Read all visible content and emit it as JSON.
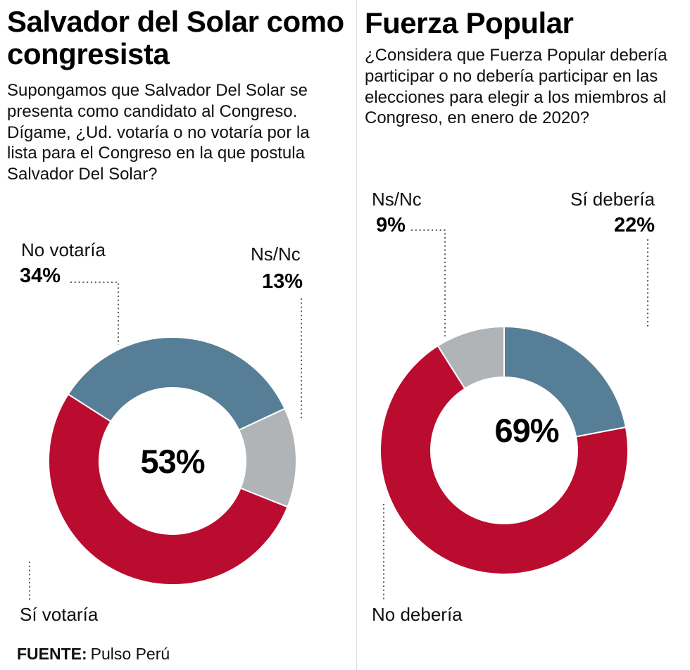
{
  "colors": {
    "crimson": "#ba0c2f",
    "blue": "#567f97",
    "gray": "#b1b4b6"
  },
  "source": {
    "label": "FUENTE:",
    "value": "Pulso Perú"
  },
  "chart_data": [
    {
      "type": "donut",
      "title": "Salvador del Solar como congresista",
      "question": "Supongamos que Salvador Del Solar se presenta como candidato al Congreso. Dígame, ¿Ud. votaría o no votaría por la lista para el Congreso en la que postula Salvador Del Solar?",
      "center_label": "53%",
      "start_angle": 302.6,
      "legend_position": "callout-labels",
      "slices": [
        {
          "label": "No votaría",
          "value": 34,
          "pct": "34%",
          "color_key": "blue"
        },
        {
          "label": "Ns/Nc",
          "value": 13,
          "pct": "13%",
          "color_key": "gray"
        },
        {
          "label": "Sí votaría",
          "value": 53,
          "pct": "53%",
          "color_key": "crimson"
        }
      ]
    },
    {
      "type": "donut",
      "title": "Fuerza Popular",
      "question": "¿Considera que Fuerza Popular debería participar o no debería participar en las elecciones para elegir a los miembros al Congreso, en enero de 2020?",
      "center_label": "69%",
      "start_angle": 327.6,
      "legend_position": "callout-labels",
      "slices": [
        {
          "label": "Ns/Nc",
          "value": 9,
          "pct": "9%",
          "color_key": "gray"
        },
        {
          "label": "Sí debería",
          "value": 22,
          "pct": "22%",
          "color_key": "blue"
        },
        {
          "label": "No debería",
          "value": 69,
          "pct": "69%",
          "color_key": "crimson"
        }
      ]
    }
  ]
}
